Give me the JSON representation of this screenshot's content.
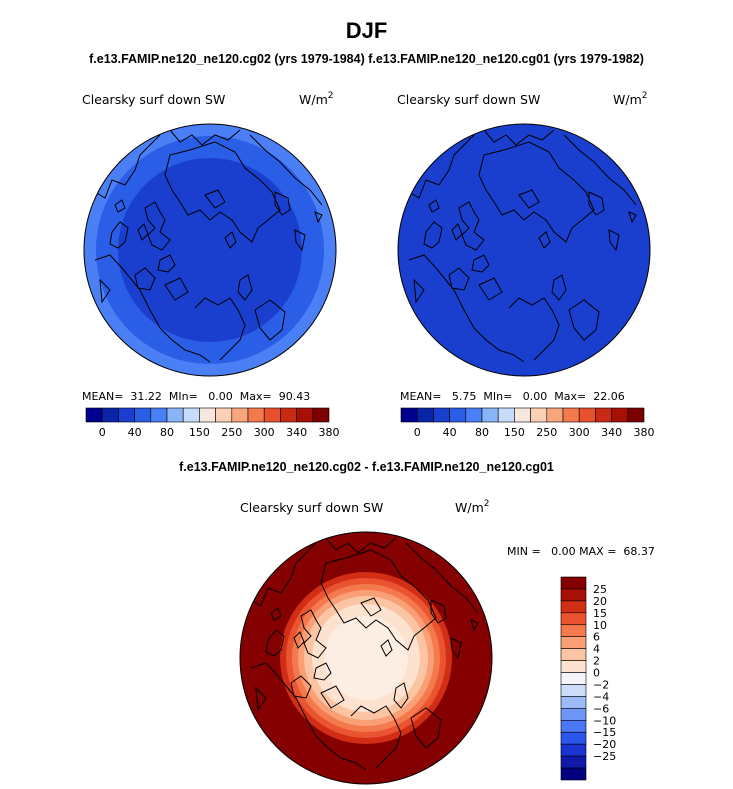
{
  "header": {
    "season": "DJF",
    "runs_line": "f.e13.FAMIP.ne120_ne120.cg02 (yrs 1979-1984) f.e13.FAMIP.ne120_ne120.cg01 (yrs 1979-1982)",
    "diff_title": "f.e13.FAMIP.ne120_ne120.cg02 - f.e13.FAMIP.ne120_ne120.cg01"
  },
  "colors": {
    "abs_scale": [
      "#00008f",
      "#0a24a8",
      "#1a3fce",
      "#2a5ee6",
      "#4a7ff5",
      "#8ab4f8",
      "#c5dcfb",
      "#f7e8df",
      "#fbd0b5",
      "#f8a67c",
      "#f47a4e",
      "#e8512c",
      "#c92a14",
      "#a80f05",
      "#7c0000"
    ],
    "diff_scale": [
      "#000080",
      "#0f1aa8",
      "#1a34d4",
      "#2b56ec",
      "#4a78f4",
      "#6e96f6",
      "#9cbaf7",
      "#cddcf8",
      "#f3f5fb",
      "#fde2cf",
      "#fbc4a2",
      "#f9a076",
      "#f47a4e",
      "#ea5430",
      "#d22d15",
      "#a80f05",
      "#850000"
    ],
    "land_line": "#000000"
  },
  "abs_colorbar": {
    "tick_labels": [
      "0",
      "40",
      "80",
      "150",
      "250",
      "300",
      "340",
      "380"
    ]
  },
  "panels": {
    "left": {
      "variable": "Clearsky surf down SW",
      "units_base": "W/m",
      "units_exp": "2",
      "stats": "MEAN=  31.22  MIn=   0.00  Max=  90.43"
    },
    "right": {
      "variable": "Clearsky surf down SW",
      "units_base": "W/m",
      "units_exp": "2",
      "stats": "MEAN=   5.75  MIn=   0.00  Max=  22.06"
    },
    "diff": {
      "variable": "Clearsky surf down SW",
      "units_base": "W/m",
      "units_exp": "2",
      "stats": "MIN =   0.00 MAX =  68.37",
      "colorbar_labels": [
        "25",
        "20",
        "15",
        "10",
        "6",
        "4",
        "2",
        "0",
        "−2",
        "−4",
        "−6",
        "−10",
        "−15",
        "−20",
        "−25"
      ]
    }
  },
  "chart_data": [
    {
      "type": "heatmap",
      "projection": "north polar stereographic",
      "title": "Clearsky surf down SW",
      "units": "W/m2",
      "stats": {
        "mean": 31.22,
        "min": 0.0,
        "max": 90.43
      },
      "color_scale_ticks": [
        0,
        40,
        80,
        150,
        250,
        300,
        340,
        380
      ],
      "zonal_bands": [
        {
          "region": "pole interior",
          "level": "lowest"
        },
        {
          "region": "middle ring",
          "level": "low"
        },
        {
          "region": "outer edge",
          "level": "low-moderate"
        }
      ]
    },
    {
      "type": "heatmap",
      "projection": "north polar stereographic",
      "title": "Clearsky surf down SW",
      "units": "W/m2",
      "stats": {
        "mean": 5.75,
        "min": 0.0,
        "max": 22.06
      },
      "color_scale_ticks": [
        0,
        40,
        80,
        150,
        250,
        300,
        340,
        380
      ],
      "zonal_bands": [
        {
          "region": "entire domain",
          "level": "lowest"
        }
      ]
    },
    {
      "type": "heatmap",
      "projection": "north polar stereographic",
      "title": "Clearsky surf down SW",
      "units": "W/m2",
      "stats": {
        "min": 0.0,
        "max": 68.37
      },
      "color_scale_ticks": [
        -25,
        -20,
        -15,
        -10,
        -6,
        -4,
        -2,
        0,
        2,
        4,
        6,
        10,
        15,
        20,
        25
      ],
      "zonal_bands": [
        {
          "region": "pole",
          "value_range": [
            0,
            2
          ]
        },
        {
          "region": "inner ring",
          "value_range": [
            2,
            4
          ]
        },
        {
          "region": "ring 2",
          "value_range": [
            4,
            6
          ]
        },
        {
          "region": "ring 3",
          "value_range": [
            6,
            10
          ]
        },
        {
          "region": "ring 4",
          "value_range": [
            10,
            15
          ]
        },
        {
          "region": "ring 5",
          "value_range": [
            15,
            20
          ]
        },
        {
          "region": "ring 6",
          "value_range": [
            20,
            25
          ]
        },
        {
          "region": "outer",
          "value_range": [
            25,
            68.37
          ]
        }
      ]
    }
  ]
}
